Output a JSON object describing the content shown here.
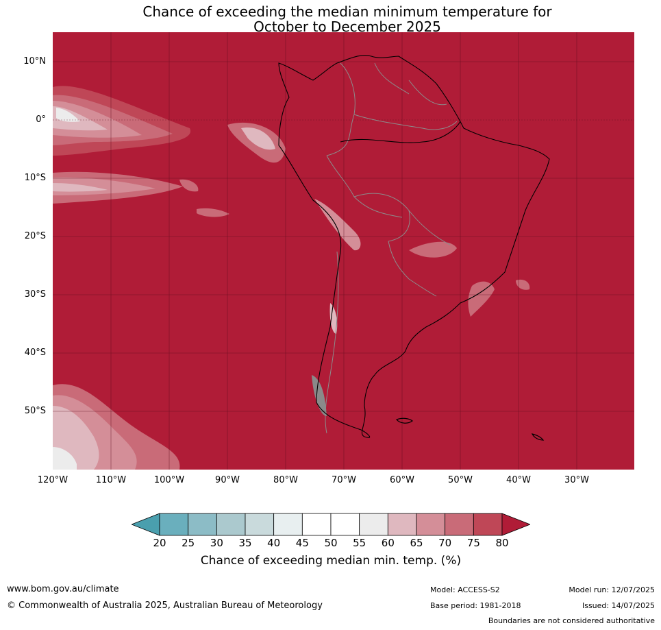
{
  "title": {
    "line1": "Chance of exceeding the median minimum temperature for",
    "line2": "October to December 2025"
  },
  "map": {
    "lat_labels": [
      "10°N",
      "0°",
      "10°S",
      "20°S",
      "30°S",
      "40°S",
      "50°S"
    ],
    "lon_labels": [
      "120°W",
      "110°W",
      "100°W",
      "90°W",
      "80°W",
      "70°W",
      "60°W",
      "50°W",
      "40°W",
      "30°W"
    ],
    "background_color": "#b01c37"
  },
  "colorbar": {
    "ticks": [
      "20",
      "25",
      "30",
      "35",
      "40",
      "45",
      "50",
      "55",
      "60",
      "65",
      "70",
      "75",
      "80"
    ],
    "colors": [
      "#4a9fae",
      "#6aafbd",
      "#8cbcc6",
      "#abc9ce",
      "#c9dadc",
      "#e8eff0",
      "#ffffff",
      "#ffffff",
      "#ececec",
      "#dfb8bf",
      "#d48e98",
      "#c96b78",
      "#bf4757",
      "#b01c37"
    ],
    "label": "Chance of exceeding median min. temp. (%)"
  },
  "footer": {
    "website": "www.bom.gov.au/climate",
    "copyright": "© Commonwealth of Australia 2025, Australian Bureau of Meteorology",
    "model": "Model: ACCESS-S2",
    "base_period": "Base period: 1981-2018",
    "model_run": "Model run: 12/07/2025",
    "issued": "Issued: 14/07/2025",
    "disclaimer": "Boundaries are not considered authoritative"
  }
}
